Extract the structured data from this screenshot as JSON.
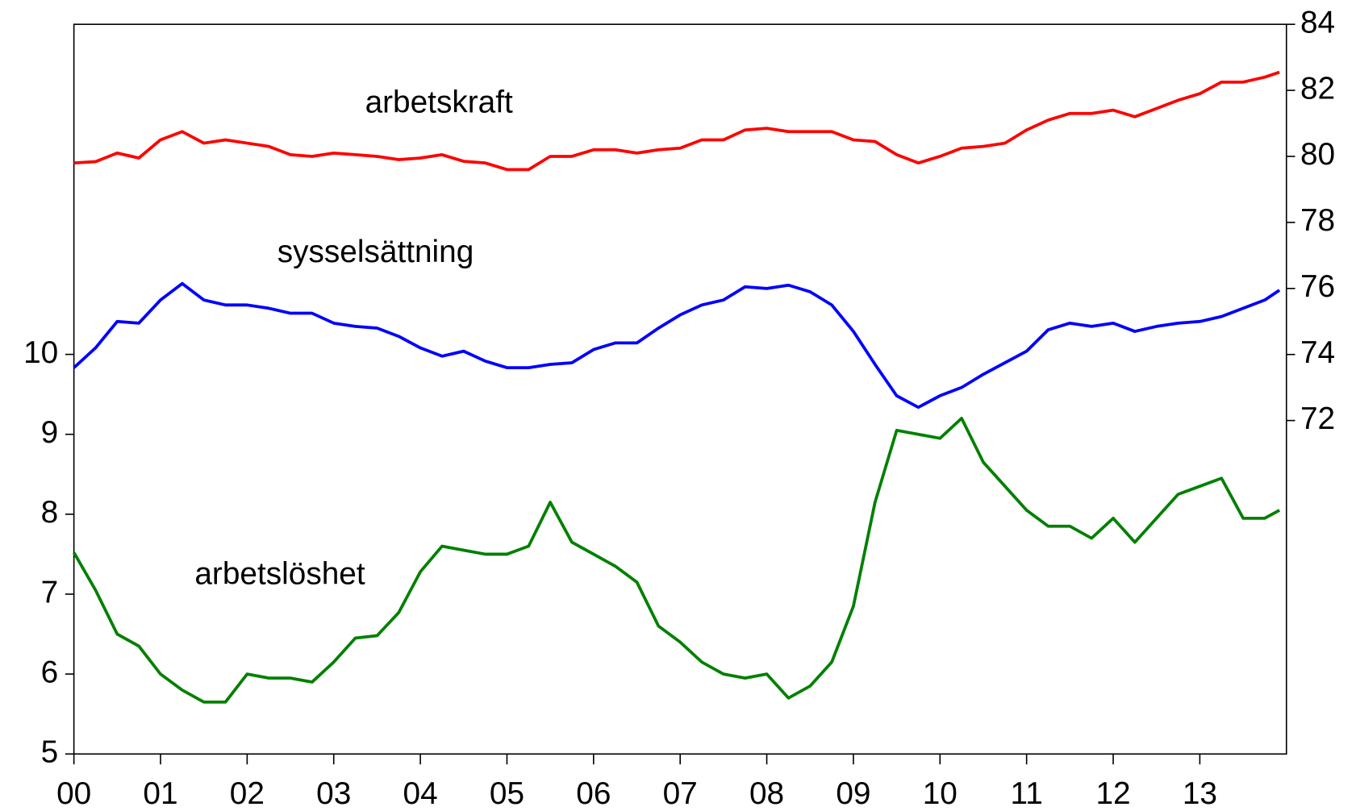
{
  "chart_data": {
    "type": "line",
    "x": [
      2000,
      2000.25,
      2000.5,
      2000.75,
      2001,
      2001.25,
      2001.5,
      2001.75,
      2002,
      2002.25,
      2002.5,
      2002.75,
      2003,
      2003.25,
      2003.5,
      2003.75,
      2004,
      2004.25,
      2004.5,
      2004.75,
      2005,
      2005.25,
      2005.5,
      2005.75,
      2006,
      2006.25,
      2006.5,
      2006.75,
      2007,
      2007.25,
      2007.5,
      2007.75,
      2008,
      2008.25,
      2008.5,
      2008.75,
      2009,
      2009.25,
      2009.5,
      2009.75,
      2010,
      2010.25,
      2010.5,
      2010.75,
      2011,
      2011.25,
      2011.5,
      2011.75,
      2012,
      2012.25,
      2012.5,
      2012.75,
      2013,
      2013.25,
      2013.5,
      2013.75,
      2013.92
    ],
    "series": [
      {
        "name": "arbetskraft",
        "color": "#ff0000",
        "axis": "y2",
        "values": [
          79.8,
          79.84,
          80.1,
          79.95,
          80.5,
          80.75,
          80.4,
          80.5,
          80.4,
          80.3,
          80.05,
          80.0,
          80.1,
          80.05,
          80.0,
          79.9,
          79.95,
          80.05,
          79.85,
          79.8,
          79.6,
          79.6,
          80.0,
          80.0,
          80.2,
          80.2,
          80.1,
          80.2,
          80.25,
          80.5,
          80.5,
          80.8,
          80.85,
          80.75,
          80.75,
          80.75,
          80.5,
          80.45,
          80.05,
          79.8,
          80.0,
          80.25,
          80.3,
          80.4,
          80.8,
          81.1,
          81.3,
          81.3,
          81.4,
          81.2,
          81.45,
          81.7,
          81.9,
          82.25,
          82.25,
          82.4,
          82.55
        ]
      },
      {
        "name": "sysselsättning",
        "color": "#0000ff",
        "axis": "y2",
        "values": [
          73.6,
          74.2,
          75.0,
          74.95,
          75.65,
          76.15,
          75.65,
          75.5,
          75.5,
          75.4,
          75.25,
          75.25,
          74.95,
          74.85,
          74.8,
          74.55,
          74.2,
          73.95,
          74.1,
          73.8,
          73.6,
          73.6,
          73.7,
          73.75,
          74.15,
          74.35,
          74.35,
          74.8,
          75.2,
          75.5,
          75.65,
          76.05,
          76.0,
          76.1,
          75.9,
          75.5,
          74.7,
          73.7,
          72.75,
          72.4,
          72.75,
          73.0,
          73.4,
          73.75,
          74.1,
          74.75,
          74.95,
          74.85,
          74.95,
          74.7,
          74.85,
          74.95,
          75.0,
          75.15,
          75.4,
          75.65,
          75.95
        ]
      },
      {
        "name": "arbetslöshet",
        "color": "#008000",
        "values": [
          7.52,
          7.05,
          6.5,
          6.35,
          6.0,
          5.8,
          5.65,
          5.65,
          6.0,
          5.95,
          5.95,
          5.9,
          6.15,
          6.45,
          6.48,
          6.77,
          7.28,
          7.6,
          7.55,
          7.5,
          7.5,
          7.6,
          8.15,
          7.65,
          7.5,
          7.35,
          7.15,
          6.6,
          6.4,
          6.15,
          6.0,
          5.95,
          6.0,
          5.7,
          5.85,
          6.15,
          6.85,
          8.15,
          9.05,
          9.0,
          8.95,
          9.2,
          8.65,
          8.35,
          8.05,
          7.85,
          7.85,
          7.7,
          7.95,
          7.65,
          7.95,
          8.25,
          8.35,
          8.45,
          7.95,
          7.95,
          8.05
        ]
      }
    ],
    "xlim": [
      2000,
      2014
    ],
    "xticks": [
      {
        "value": 2000,
        "label": "00"
      },
      {
        "value": 2001,
        "label": "01"
      },
      {
        "value": 2002,
        "label": "02"
      },
      {
        "value": 2003,
        "label": "03"
      },
      {
        "value": 2004,
        "label": "04"
      },
      {
        "value": 2005,
        "label": "05"
      },
      {
        "value": 2006,
        "label": "06"
      },
      {
        "value": 2007,
        "label": "07"
      },
      {
        "value": 2008,
        "label": "08"
      },
      {
        "value": 2009,
        "label": "09"
      },
      {
        "value": 2010,
        "label": "10"
      },
      {
        "value": 2011,
        "label": "11"
      },
      {
        "value": 2012,
        "label": "12"
      },
      {
        "value": 2013,
        "label": "13"
      }
    ],
    "ylim": [
      5,
      14.13
    ],
    "yticks": [
      5,
      6,
      7,
      8,
      9,
      10
    ],
    "y2lim": [
      61.9,
      84
    ],
    "y2ticks": [
      72,
      74,
      76,
      78,
      80,
      82,
      84
    ],
    "grid": false
  }
}
